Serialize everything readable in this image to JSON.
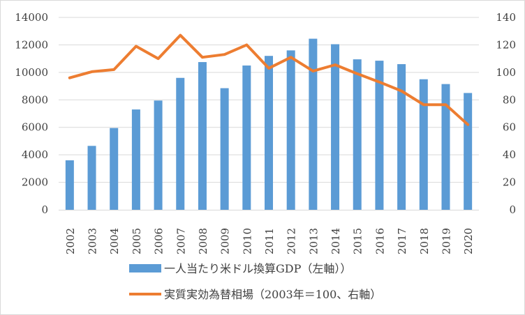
{
  "chart_data": {
    "type": "bar+line",
    "categories": [
      "2002",
      "2003",
      "2004",
      "2005",
      "2006",
      "2007",
      "2008",
      "2009",
      "2010",
      "2011",
      "2012",
      "2013",
      "2014",
      "2015",
      "2016",
      "2017",
      "2018",
      "2019",
      "2020"
    ],
    "series": [
      {
        "name": "一人当たり米ドル換算GDP（左軸））",
        "type": "bar",
        "axis": "left",
        "color": "#5b9bd5",
        "values": [
          3600,
          4650,
          5950,
          7300,
          7950,
          9600,
          10750,
          8850,
          10500,
          11200,
          11600,
          12450,
          12050,
          10950,
          10850,
          10600,
          9500,
          9150,
          8500
        ]
      },
      {
        "name": "実質実効為替相場（2003年＝100、右軸）",
        "type": "line",
        "axis": "right",
        "color": "#ed7d31",
        "values": [
          96,
          100.5,
          102,
          119,
          110,
          127,
          111,
          113,
          120,
          103,
          111,
          101,
          105.5,
          99,
          93,
          86.5,
          76.5,
          76.5,
          62
        ]
      }
    ],
    "y_left": {
      "min": 0,
      "max": 14000,
      "ticks": [
        0,
        2000,
        4000,
        6000,
        8000,
        10000,
        12000,
        14000
      ]
    },
    "y_right": {
      "min": 0,
      "max": 140,
      "ticks": [
        0,
        20,
        40,
        60,
        80,
        100,
        120,
        140
      ]
    },
    "grid": true,
    "legend_position": "bottom"
  }
}
